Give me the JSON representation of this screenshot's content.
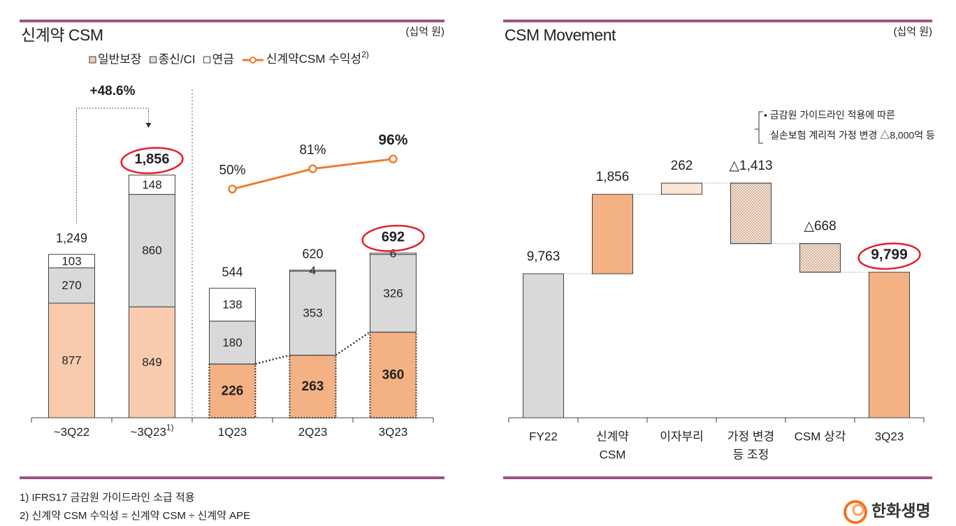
{
  "left_panel": {
    "title": "신계약 CSM",
    "unit": "(십억 원)"
  },
  "right_panel": {
    "title": "CSM Movement",
    "unit": "(십억 원)"
  },
  "chart_data": [
    {
      "type": "stacked_bar",
      "categories": [
        "~3Q22",
        "~3Q23"
      ],
      "category_notes": [
        null,
        "1)"
      ],
      "series": [
        {
          "name": "일반보장",
          "color": "#f8cbad",
          "values": [
            877,
            849
          ]
        },
        {
          "name": "종신/CI",
          "color": "#d9d9d9",
          "values": [
            270,
            860
          ]
        },
        {
          "name": "연금",
          "color": "#ffffff",
          "values": [
            103,
            148
          ]
        }
      ],
      "totals": [
        1249,
        1856
      ],
      "total_labels": [
        "1,249",
        "1,856"
      ],
      "circled": [
        false,
        true
      ],
      "ylim": [
        0,
        2550
      ],
      "growth_annotation": "+48.6%"
    },
    {
      "type": "stacked_bar",
      "categories": [
        "1Q23",
        "2Q23",
        "3Q23"
      ],
      "series": [
        {
          "color": "#f4b183",
          "values": [
            226,
            263,
            360
          ]
        },
        {
          "color": "#d9d9d9",
          "values": [
            180,
            353,
            326
          ]
        },
        {
          "color": "#ffffff",
          "values": [
            138,
            4,
            6
          ]
        }
      ],
      "totals": [
        544,
        620,
        692
      ],
      "circled": [
        false,
        false,
        true
      ],
      "ylim": [
        0,
        1400
      ],
      "line": {
        "name": "신계약CSM 수익성",
        "name_note": "2)",
        "color": "#ed7d31",
        "values": [
          50,
          81,
          96
        ],
        "value_labels": [
          "50%",
          "81%",
          "96%"
        ],
        "axis": "y2"
      },
      "y2lim": [
        -300,
        210
      ]
    },
    {
      "type": "waterfall",
      "categories": [
        [
          "FY22"
        ],
        [
          "신계약",
          "CSM"
        ],
        [
          "이자부리"
        ],
        [
          "가정 변경",
          "등 조정"
        ],
        [
          "CSM 상각"
        ],
        [
          "3Q23"
        ]
      ],
      "values": [
        9763,
        1856,
        262,
        -1413,
        -668,
        9799
      ],
      "value_labels": [
        "9,763",
        "1,856",
        "262",
        "△1,413",
        "△668",
        "9,799"
      ],
      "measure": [
        "absolute",
        "relative",
        "relative",
        "relative",
        "relative",
        "absolute"
      ],
      "colors": [
        "#d9d9d9",
        "#f4b183",
        "#fbe5d6",
        "#fbe5d6",
        "#fbe5d6",
        "#f4b183"
      ],
      "hatched": [
        false,
        false,
        false,
        true,
        true,
        false
      ],
      "circled": [
        false,
        false,
        false,
        false,
        false,
        true
      ],
      "ylim": [
        6400,
        14200
      ],
      "annotation": [
        "• 금감원 가이드라인 적용에 따른",
        "실손보험 계리적 가정 변경 △8,000억 등"
      ]
    }
  ],
  "footnotes": [
    "1) IFRS17 금감원 가이드라인 소급 적용",
    "2) 신계약 CSM 수익성 = 신계약 CSM ÷ 신계약 APE"
  ],
  "logo": "한화생명"
}
